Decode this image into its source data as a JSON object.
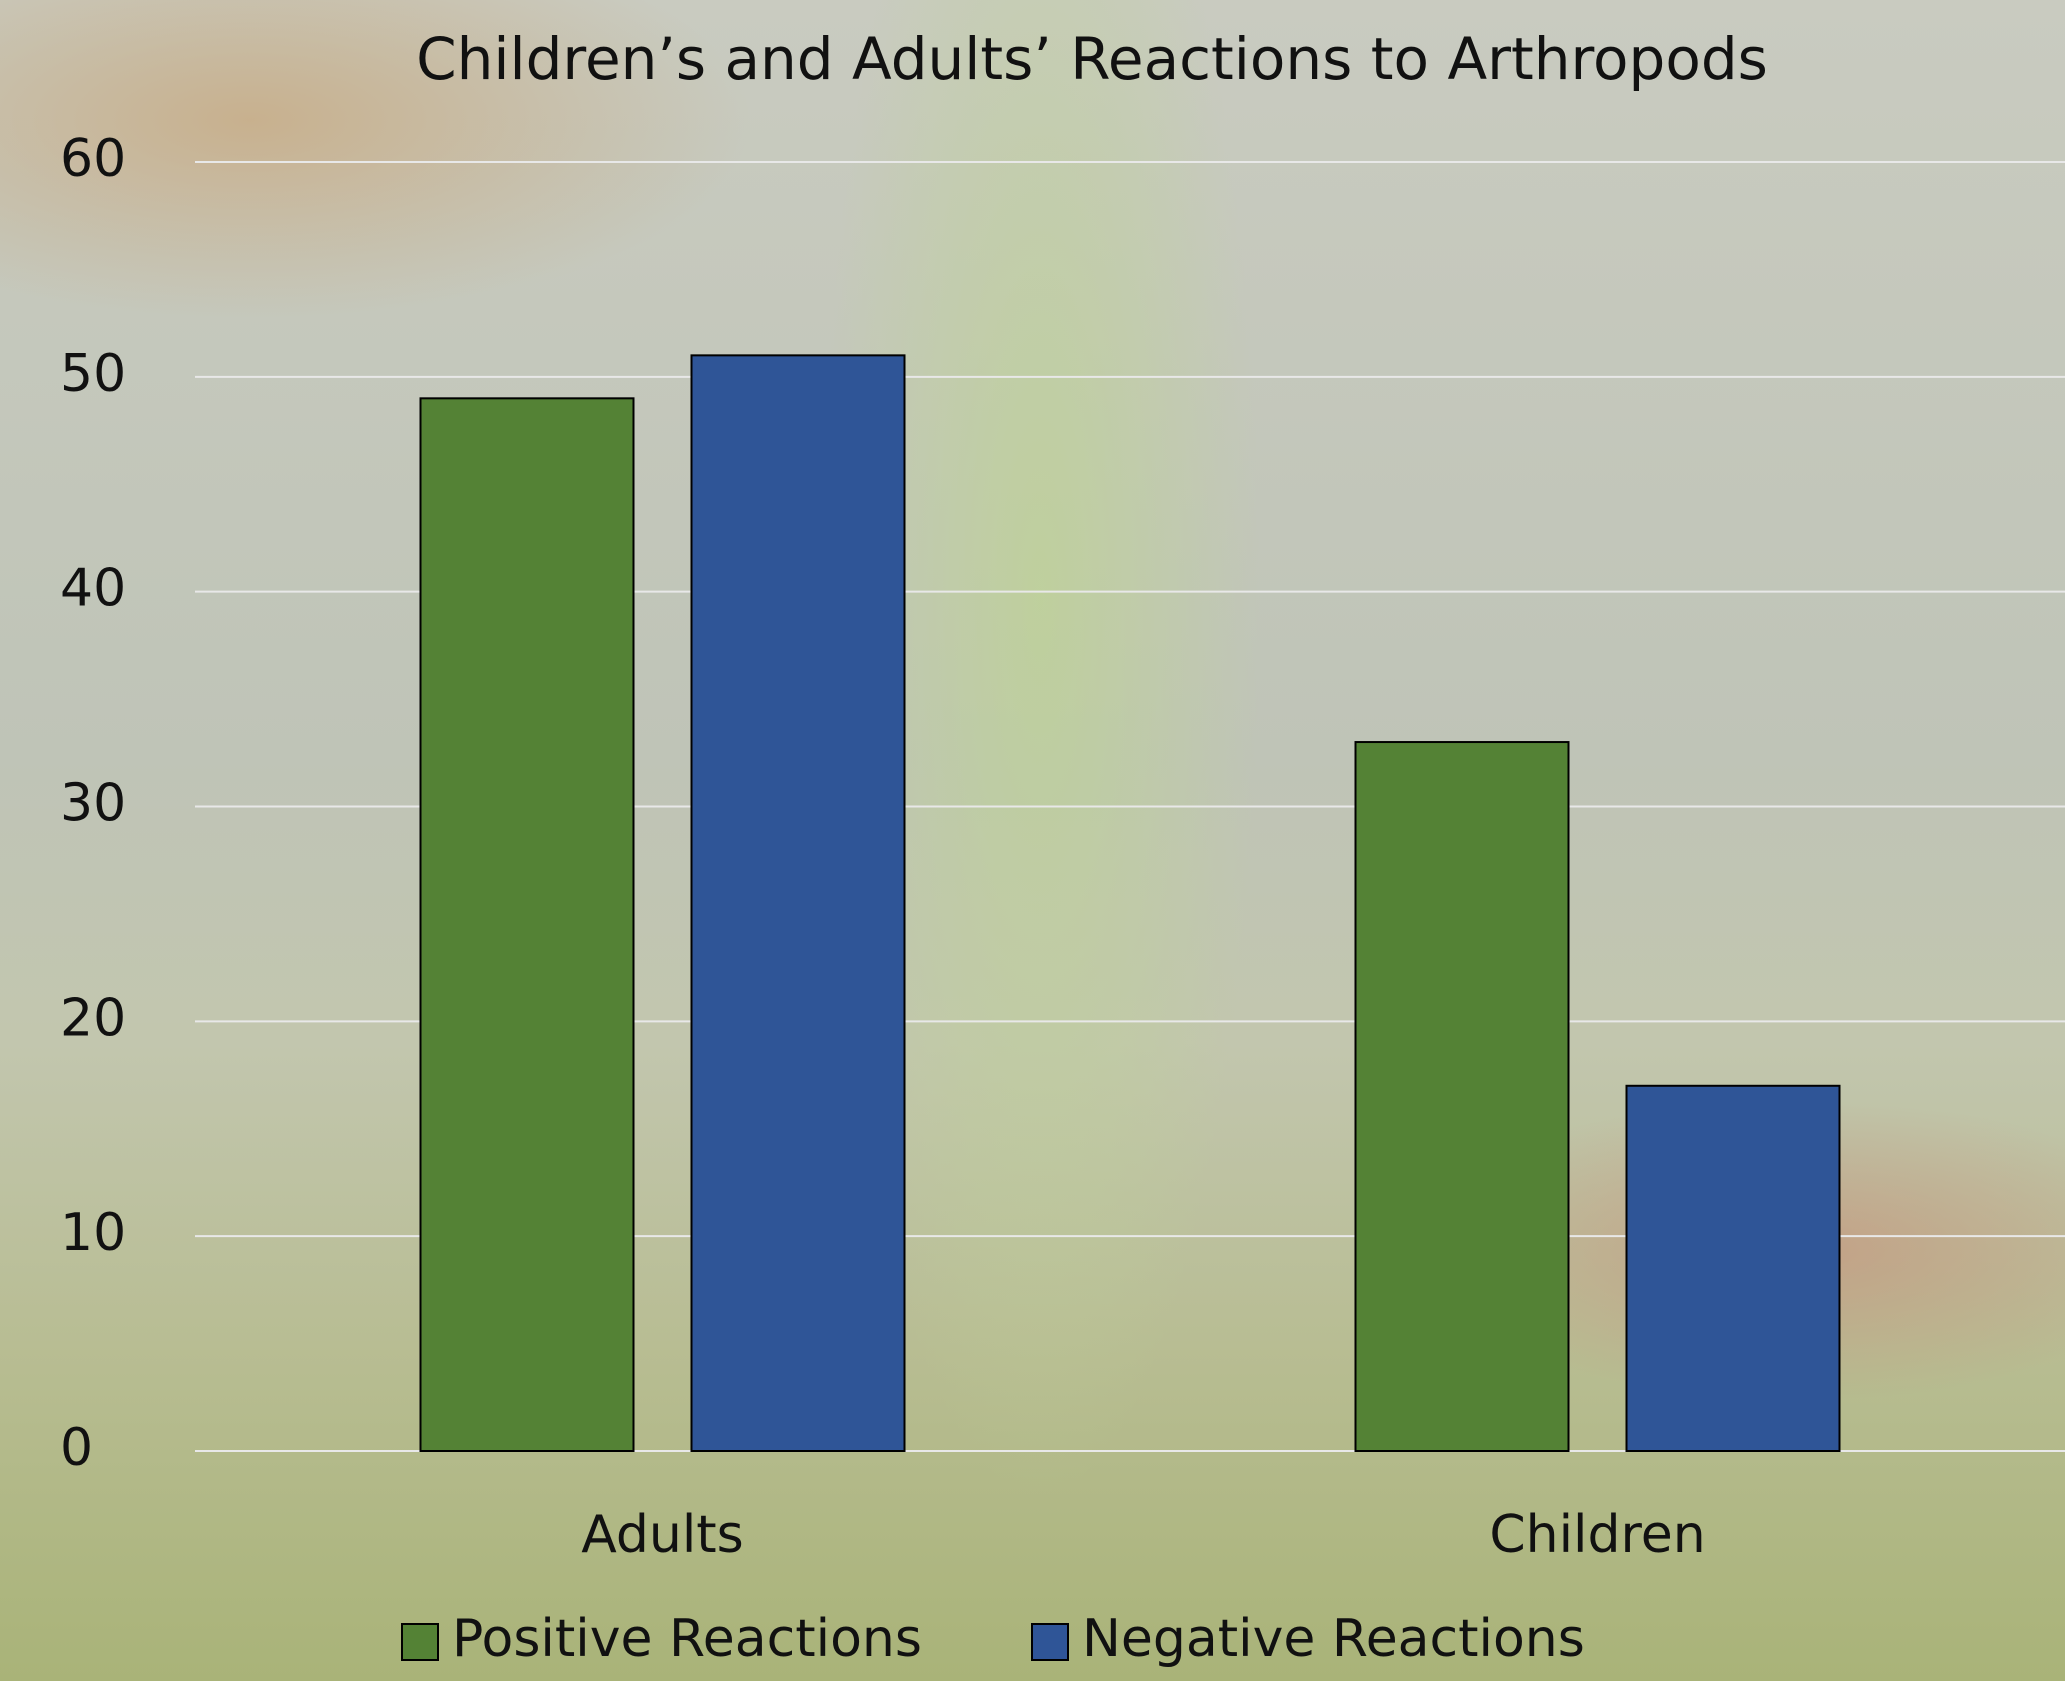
{
  "chart_data": {
    "type": "bar",
    "title": "Children’s and Adults’ Reactions to Arthropods",
    "categories": [
      "Adults",
      "Children"
    ],
    "series": [
      {
        "name": "Positive Reactions",
        "color": "#548235",
        "values": [
          49,
          33
        ]
      },
      {
        "name": "Negative Reactions",
        "color": "#2f5597",
        "values": [
          51,
          17
        ]
      }
    ],
    "ylim": [
      0,
      60
    ],
    "yticks": [
      0,
      10,
      20,
      30,
      40,
      50,
      60
    ],
    "grid": true,
    "legend": "bottom"
  }
}
